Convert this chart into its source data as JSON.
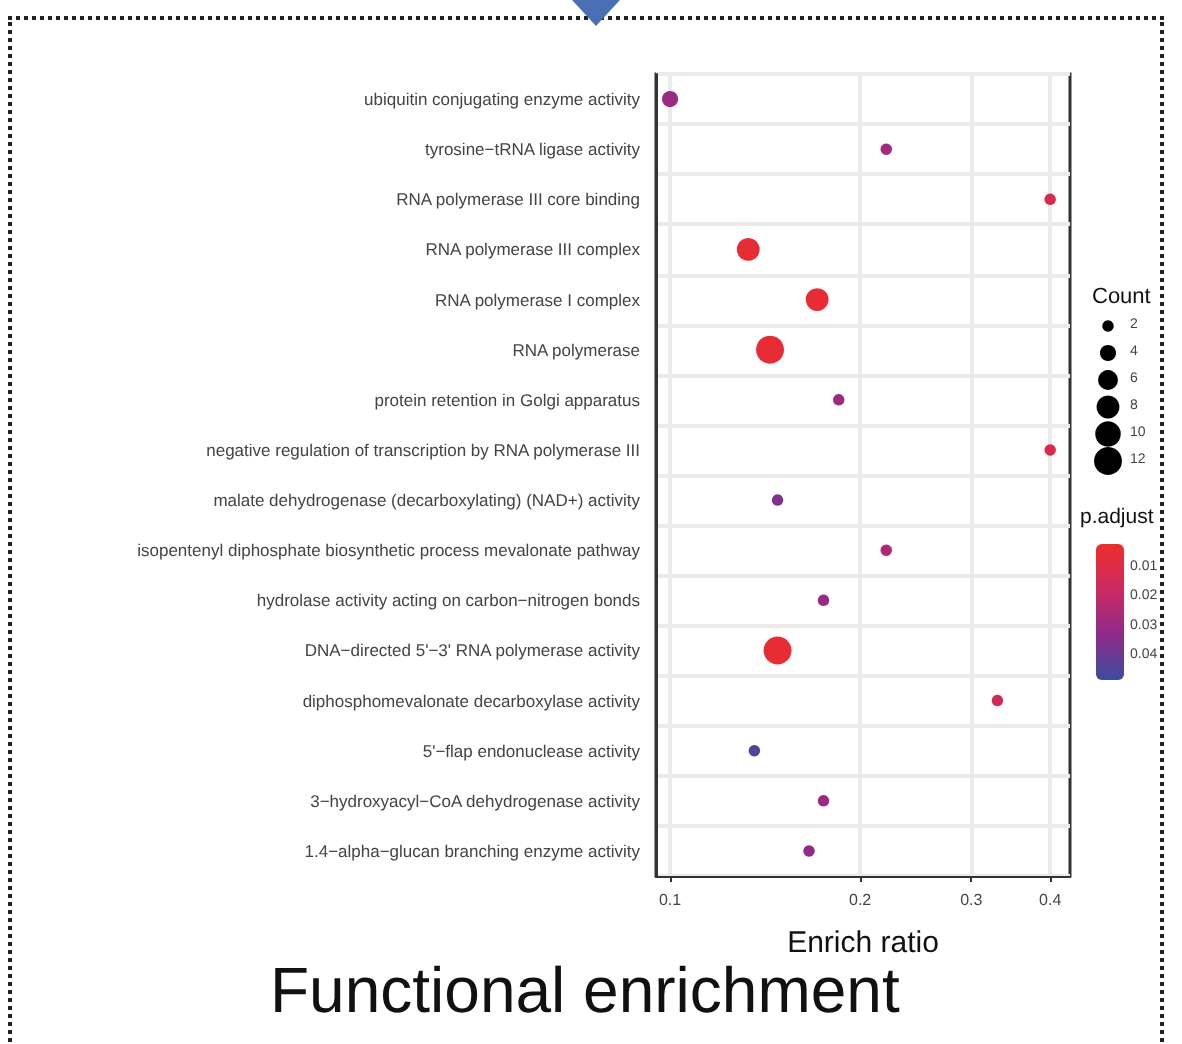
{
  "chart_data": {
    "type": "bubble",
    "orientation": "horizontal",
    "title": "Functional enrichment",
    "xlabel": "Enrich ratio",
    "categories": [
      "ubiquitin conjugating enzyme activity",
      "tyrosine−tRNA ligase activity",
      "RNA polymerase III core binding",
      "RNA polymerase III complex",
      "RNA polymerase I complex",
      "RNA polymerase",
      "protein retention in Golgi apparatus",
      "negative regulation of transcription by RNA polymerase III",
      "malate dehydrogenase (decarboxylating) (NAD+) activity",
      "isopentenyl diphosphate biosynthetic process mevalonate pathway",
      "hydrolase activity acting on carbon−nitrogen bonds",
      "DNA−directed 5'−3' RNA polymerase activity",
      "diphosphomevalonate decarboxylase activity",
      "5'−flap endonuclease activity",
      "3−hydroxyacyl−CoA dehydrogenase activity",
      "1.4−alpha−glucan branching enzyme activity"
    ],
    "values": [
      0.1,
      0.22,
      0.4,
      0.133,
      0.171,
      0.144,
      0.185,
      0.4,
      0.148,
      0.22,
      0.175,
      0.148,
      0.33,
      0.136,
      0.175,
      0.166
    ],
    "sizes": [
      4,
      2,
      2,
      8,
      8,
      12,
      2,
      2,
      2,
      2,
      2,
      12,
      2,
      2,
      2,
      2
    ],
    "cvalues": [
      0.03,
      0.028,
      0.012,
      0.005,
      0.005,
      0.005,
      0.03,
      0.012,
      0.035,
      0.025,
      0.03,
      0.005,
      0.015,
      0.045,
      0.03,
      0.032
    ],
    "size_legend": [
      2,
      4,
      6,
      8,
      10,
      12
    ],
    "legend_title": "Count",
    "clabel": "p.adjust",
    "clim": [
      0.002,
      0.048
    ],
    "cticks": [
      0.01,
      0.02,
      0.03,
      0.04
    ],
    "log": "x",
    "xlim": [
      0.095,
      0.43
    ],
    "xticks": [
      0.1,
      0.2,
      0.3,
      0.4
    ],
    "grid": true
  }
}
